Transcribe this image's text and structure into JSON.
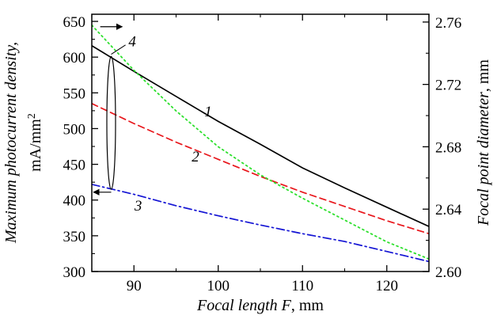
{
  "chart_data": {
    "type": "line",
    "xlabel": {
      "italic": "Focal length F",
      "unit": ", mm"
    },
    "ylabel_left": {
      "italic": "Maximum photocurrent density,",
      "unit": "mA/mm",
      "unit_sup": "2"
    },
    "ylabel_right": {
      "italic": "Focal point diameter",
      "unit": ", mm"
    },
    "xlim": [
      85,
      125
    ],
    "ylim_left": [
      300,
      660
    ],
    "ylim_right": [
      2.6,
      2.765
    ],
    "x_ticks": [
      90,
      100,
      110,
      120
    ],
    "y_left_ticks": [
      300,
      350,
      400,
      450,
      500,
      550,
      600,
      650
    ],
    "y_right_ticks": [
      2.6,
      2.64,
      2.68,
      2.72,
      2.76
    ],
    "y_right_tick_labels": [
      "2.60",
      "2.64",
      "2.68",
      "2.72",
      "2.76"
    ],
    "grid": false,
    "series": [
      {
        "name": "1",
        "axis": "left",
        "color": "#000000",
        "dash": "solid",
        "x": [
          85,
          90,
          95,
          100,
          105,
          110,
          115,
          120,
          125
        ],
        "y": [
          616,
          580,
          545,
          510,
          478,
          445,
          417,
          390,
          363
        ]
      },
      {
        "name": "2",
        "axis": "left",
        "color": "#e8161b",
        "dash": "dashed",
        "x": [
          85,
          90,
          95,
          100,
          105,
          110,
          115,
          120,
          125
        ],
        "y": [
          535,
          507,
          481,
          457,
          433,
          411,
          391,
          371,
          353
        ]
      },
      {
        "name": "3",
        "axis": "left",
        "color": "#1414d4",
        "dash": "dashdot",
        "x": [
          85,
          90,
          95,
          100,
          105,
          110,
          115,
          120,
          125
        ],
        "y": [
          422,
          408,
          392,
          378,
          365,
          353,
          342,
          328,
          314
        ]
      },
      {
        "name": "4",
        "axis": "right",
        "color": "#2ee02e",
        "dash": "dotted",
        "x": [
          85,
          90,
          95,
          100,
          105,
          110,
          115,
          120,
          125
        ],
        "y": [
          2.758,
          2.729,
          2.703,
          2.68,
          2.662,
          2.647,
          2.633,
          2.619,
          2.608
        ]
      }
    ],
    "annotations": [
      "1",
      "2",
      "3",
      "4"
    ]
  }
}
